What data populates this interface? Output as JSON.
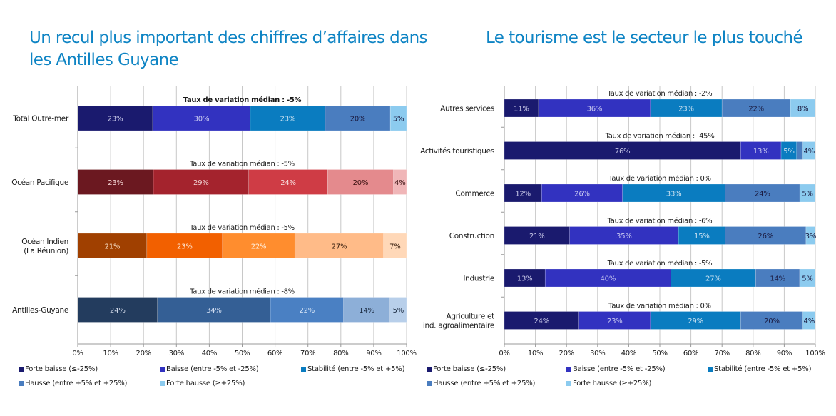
{
  "titles": {
    "left": "Un recul plus important des chiffres d’affaires dans les Antilles Guyane",
    "right": "Le tourisme est le secteur le plus touché"
  },
  "chart_data": [
    {
      "type": "bar",
      "orientation": "horizontal-stacked-100",
      "title": "Un recul plus important des chiffres d’affaires dans les Antilles Guyane",
      "xlim": [
        0,
        100
      ],
      "x_ticks": [
        "0%",
        "10%",
        "20%",
        "30%",
        "40%",
        "50%",
        "60%",
        "70%",
        "80%",
        "90%",
        "100%"
      ],
      "grid": true,
      "legend_position": "bottom",
      "segments": [
        "Forte baisse (≤-25%)",
        "Baisse (entre -5% et -25%)",
        "Stabilité (entre -5% et +5%)",
        "Hausse (entre +5% et +25%)",
        "Forte hausse (≥+25%)"
      ],
      "categories": [
        {
          "label": [
            "Total Outre-mer"
          ],
          "median_note": "Taux de variation médian : -5%",
          "median_bold": true,
          "values": [
            23,
            30,
            23,
            20,
            5
          ],
          "labels": [
            "23%",
            "30%",
            "23%",
            "20%",
            "5%"
          ],
          "colors": [
            "#1a1a6e",
            "#3232c0",
            "#0a7cc0",
            "#4a7dbf",
            "#8ccbef"
          ],
          "text_colors": [
            "#c8c8e8",
            "#c8c8f0",
            "#c8e0f0",
            "#1a1a40",
            "#1a1a40"
          ]
        },
        {
          "label": [
            "Océan Pacifique"
          ],
          "median_note": "Taux de variation médian : -5%",
          "median_bold": false,
          "values": [
            23,
            29,
            24,
            20,
            4
          ],
          "labels": [
            "23%",
            "29%",
            "24%",
            "20%",
            "4%"
          ],
          "colors": [
            "#6b1820",
            "#a4232d",
            "#cf3c45",
            "#e48a8d",
            "#f0b6b8"
          ],
          "text_colors": [
            "#f0d0d0",
            "#f0d0d0",
            "#f8e0e0",
            "#3a1010",
            "#3a1010"
          ]
        },
        {
          "label": [
            "Océan Indien",
            "(La Réunion)"
          ],
          "median_note": "Taux de variation médian : -5%",
          "median_bold": false,
          "values": [
            21,
            23,
            22,
            27,
            7
          ],
          "labels": [
            "21%",
            "23%",
            "22%",
            "27%",
            "7%"
          ],
          "colors": [
            "#a04000",
            "#f26000",
            "#ff8d2e",
            "#ffbb88",
            "#ffd8b8"
          ],
          "text_colors": [
            "#f8e0c8",
            "#fde8d8",
            "#fff0e0",
            "#3a2010",
            "#3a2010"
          ]
        },
        {
          "label": [
            "Antilles-Guyane"
          ],
          "median_note": "Taux de variation médian : -8%",
          "median_bold": false,
          "values": [
            24,
            34,
            22,
            14,
            5
          ],
          "labels": [
            "24%",
            "34%",
            "22%",
            "14%",
            "5%"
          ],
          "colors": [
            "#233c5e",
            "#345f95",
            "#4a80c3",
            "#8dafd8",
            "#b8cfea"
          ],
          "text_colors": [
            "#d0d8e8",
            "#d0dcf0",
            "#dce8f8",
            "#1a2a40",
            "#1a2a40"
          ]
        }
      ]
    },
    {
      "type": "bar",
      "orientation": "horizontal-stacked-100",
      "title": "Le tourisme est le secteur le plus touché",
      "xlim": [
        0,
        100
      ],
      "x_ticks": [
        "0%",
        "10%",
        "20%",
        "30%",
        "40%",
        "50%",
        "60%",
        "70%",
        "80%",
        "90%",
        "100%"
      ],
      "grid": true,
      "legend_position": "bottom",
      "segments": [
        "Forte baisse (≤-25%)",
        "Baisse (entre -5% et -25%)",
        "Stabilité (entre -5% et +5%)",
        "Hausse (entre +5% et +25%)",
        "Forte hausse (≥+25%)"
      ],
      "categories": [
        {
          "label": [
            "Autres services"
          ],
          "median_note": "Taux de variation médian : -2%",
          "values": [
            11,
            36,
            23,
            22,
            8
          ],
          "labels": [
            "11%",
            "36%",
            "23%",
            "22%",
            "8%"
          ]
        },
        {
          "label": [
            "Activités touristiques"
          ],
          "median_note": "Taux de variation médian : -45%",
          "values": [
            76,
            13,
            5,
            2,
            4
          ],
          "labels": [
            "76%",
            "13%",
            "5%",
            "",
            "4%"
          ]
        },
        {
          "label": [
            "Commerce"
          ],
          "median_note": "Taux de variation médian : 0%",
          "values": [
            12,
            26,
            33,
            24,
            5
          ],
          "labels": [
            "12%",
            "26%",
            "33%",
            "24%",
            "5%"
          ]
        },
        {
          "label": [
            "Construction"
          ],
          "median_note": "Taux de variation médian : -6%",
          "values": [
            21,
            35,
            15,
            26,
            3
          ],
          "labels": [
            "21%",
            "35%",
            "15%",
            "26%",
            "3%"
          ]
        },
        {
          "label": [
            "Industrie"
          ],
          "median_note": "Taux de variation médian : -5%",
          "values": [
            13,
            40,
            27,
            14,
            5
          ],
          "labels": [
            "13%",
            "40%",
            "27%",
            "14%",
            "5%"
          ]
        },
        {
          "label": [
            "Agriculture et",
            "ind. agroalimentaire"
          ],
          "median_note": "Taux de variation médian : 0%",
          "values": [
            24,
            23,
            29,
            20,
            4
          ],
          "labels": [
            "24%",
            "23%",
            "29%",
            "20%",
            "4%"
          ]
        }
      ],
      "colors": [
        "#1a1a6e",
        "#3232c0",
        "#0a7cc0",
        "#4a7dbf",
        "#8ccbef"
      ],
      "text_colors": [
        "#c8c8e8",
        "#c8c8f0",
        "#c8e0f0",
        "#1a1a40",
        "#1a1a40"
      ]
    }
  ],
  "legend": {
    "items": [
      {
        "label": "Forte baisse (≤-25%)",
        "color": "#1a1a6e"
      },
      {
        "label": "Baisse (entre -5% et -25%)",
        "color": "#3232c0"
      },
      {
        "label": "Stabilité (entre -5% et +5%)",
        "color": "#0a7cc0"
      },
      {
        "label": "Hausse (entre +5% et +25%)",
        "color": "#4a7dbf"
      },
      {
        "label": "Forte hausse (≥+25%)",
        "color": "#8ccbef"
      }
    ]
  }
}
